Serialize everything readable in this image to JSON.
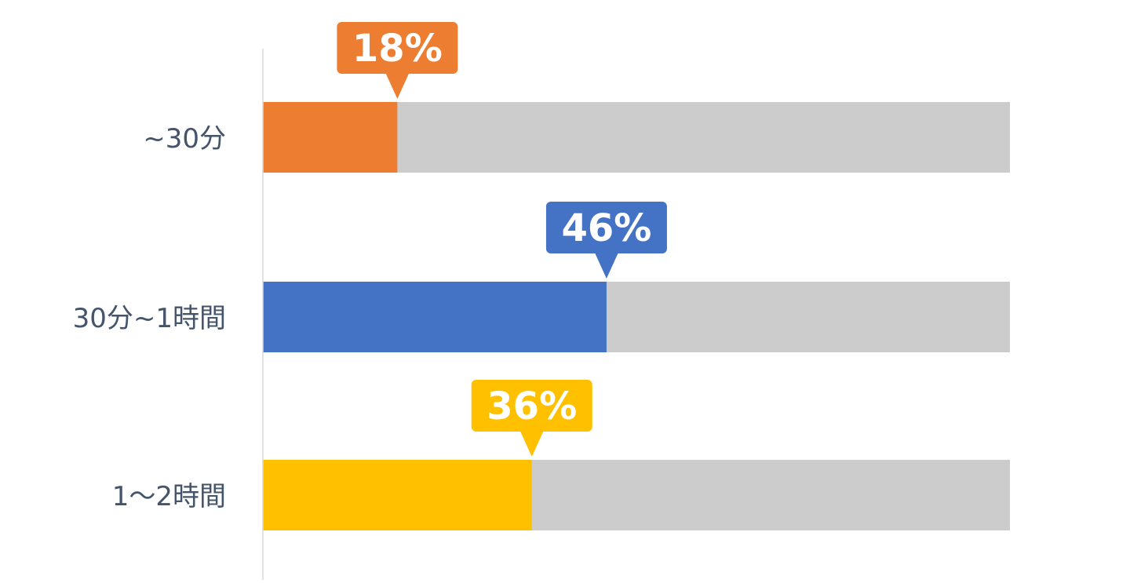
{
  "chart_data": {
    "type": "bar",
    "orientation": "horizontal",
    "categories": [
      "~30分",
      "30分~1時間",
      "1～2時間"
    ],
    "values": [
      18,
      46,
      36
    ],
    "value_labels": [
      "18%",
      "46%",
      "36%"
    ],
    "colors": [
      "#ED7D31",
      "#4472C4",
      "#FFC000"
    ],
    "track_color": "#CCCCCC",
    "xlim": [
      0,
      100
    ],
    "title": "",
    "xlabel": "",
    "ylabel": "",
    "grid": false,
    "legend": "none"
  }
}
